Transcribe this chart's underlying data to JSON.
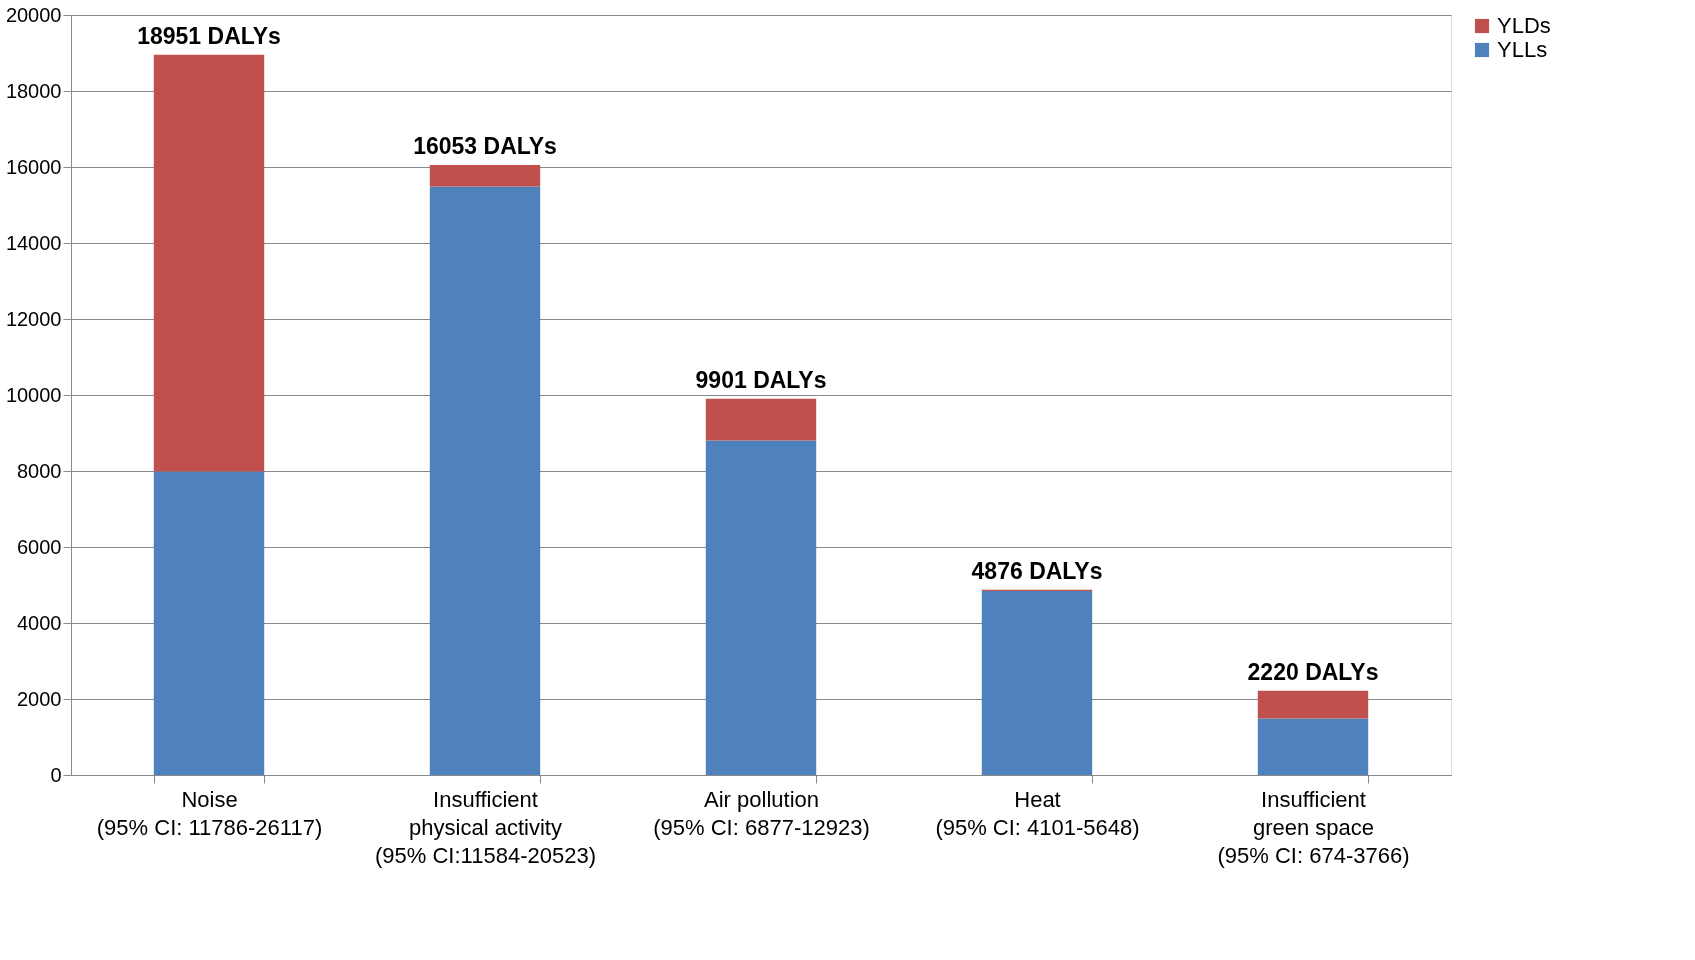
{
  "chart_data": {
    "type": "bar",
    "stacked": true,
    "categories": [
      "Noise\n(95% CI: 11786-26117)",
      "Insufficient\nphysical activity\n(95% CI:11584-20523)",
      "Air pollution\n(95% CI: 6877-12923)",
      "Heat\n(95% CI: 4101-5648)",
      "Insufficient\ngreen space\n(95% CI: 674-3766)"
    ],
    "series": [
      {
        "name": "YLLs",
        "color": "#4f81bd",
        "values": [
          7990,
          15490,
          8800,
          4840,
          1490
        ]
      },
      {
        "name": "YLDs",
        "color": "#c0504d",
        "values": [
          10961,
          563,
          1101,
          36,
          730
        ]
      }
    ],
    "totals": [
      "18951 DALYs",
      "16053 DALYs",
      "9901 DALYs",
      "4876 DALYs",
      "2220 DALYs"
    ],
    "ylim": [
      0,
      20000
    ],
    "yticks": [
      0,
      2000,
      4000,
      6000,
      8000,
      10000,
      12000,
      14000,
      16000,
      18000,
      20000
    ],
    "grid": "y",
    "legend": "top right"
  }
}
